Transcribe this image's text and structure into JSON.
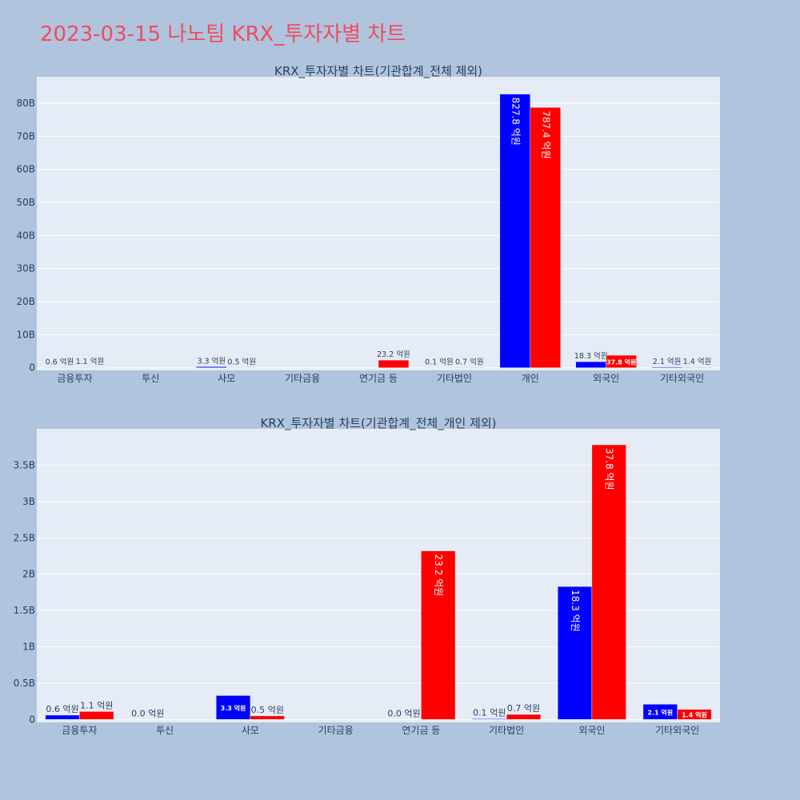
{
  "page": {
    "title": "2023-03-15 나노팀 KRX_투자자별 차트",
    "title_color": "#ef4d5f",
    "background": "#b0c4de",
    "plot_background": "#e5ecf6"
  },
  "colors": {
    "buy": "#0000ff",
    "sell": "#ff0000",
    "gridline": "#ffffff",
    "text": "#2a3f5f"
  },
  "chart_data": [
    {
      "type": "bar",
      "title": "KRX_투자자별 차트(기관합계_전체 제외)",
      "categories": [
        "금융투자",
        "투신",
        "사모",
        "기타금융",
        "연기금 등",
        "기타법인",
        "개인",
        "외국인",
        "기타외국인"
      ],
      "ylim": [
        -0.8,
        88
      ],
      "yticks": [
        0,
        10,
        20,
        30,
        40,
        50,
        60,
        70,
        80
      ],
      "ytick_labels": [
        "0",
        "10B",
        "20B",
        "30B",
        "40B",
        "50B",
        "60B",
        "70B",
        "80B"
      ],
      "grid": true,
      "series": [
        {
          "color": "#0000ff",
          "values": [
            0.06,
            0,
            0.33,
            0,
            0,
            0.01,
            82.78,
            1.83,
            0.21
          ],
          "labels": [
            "0.6 억원",
            "",
            "3.3 억원",
            "",
            "",
            "0.1 억원",
            "827.8 억원",
            "18.3 억원",
            "2.1 억원"
          ]
        },
        {
          "color": "#ff0000",
          "values": [
            0.11,
            0,
            0.05,
            0,
            2.32,
            0.07,
            78.74,
            3.78,
            0.14
          ],
          "labels": [
            "1.1 억원",
            "",
            "0.5 억원",
            "",
            "23.2 억원",
            "0.7 억원",
            "787.4 억원",
            "37.8 억원",
            "1.4 억원"
          ]
        }
      ]
    },
    {
      "type": "bar",
      "title": "KRX_투자자별 차트(기관합계_전체_개인 제외)",
      "categories": [
        "금융투자",
        "투신",
        "사모",
        "기타금융",
        "연기금 등",
        "기타법인",
        "외국인",
        "기타외국인"
      ],
      "ylim": [
        -0.04,
        4.0
      ],
      "yticks": [
        0,
        0.5,
        1,
        1.5,
        2,
        2.5,
        3,
        3.5
      ],
      "ytick_labels": [
        "0",
        "0.5B",
        "1B",
        "1.5B",
        "2B",
        "2.5B",
        "3B",
        "3.5B"
      ],
      "grid": true,
      "series": [
        {
          "color": "#0000ff",
          "values": [
            0.06,
            0.0,
            0.33,
            0,
            0.0,
            0.01,
            1.83,
            0.21
          ],
          "labels": [
            "0.6 억원",
            "0.0 억원",
            "3.3 억원",
            "",
            "0.0 억원",
            "0.1 억원",
            "18.3 억원",
            "2.1 억원"
          ]
        },
        {
          "color": "#ff0000",
          "values": [
            0.11,
            0,
            0.05,
            0,
            2.32,
            0.07,
            3.78,
            0.14
          ],
          "labels": [
            "1.1 억원",
            "",
            "0.5 억원",
            "",
            "23.2 억원",
            "0.7 억원",
            "37.8 억원",
            "1.4 억원"
          ]
        }
      ]
    }
  ]
}
